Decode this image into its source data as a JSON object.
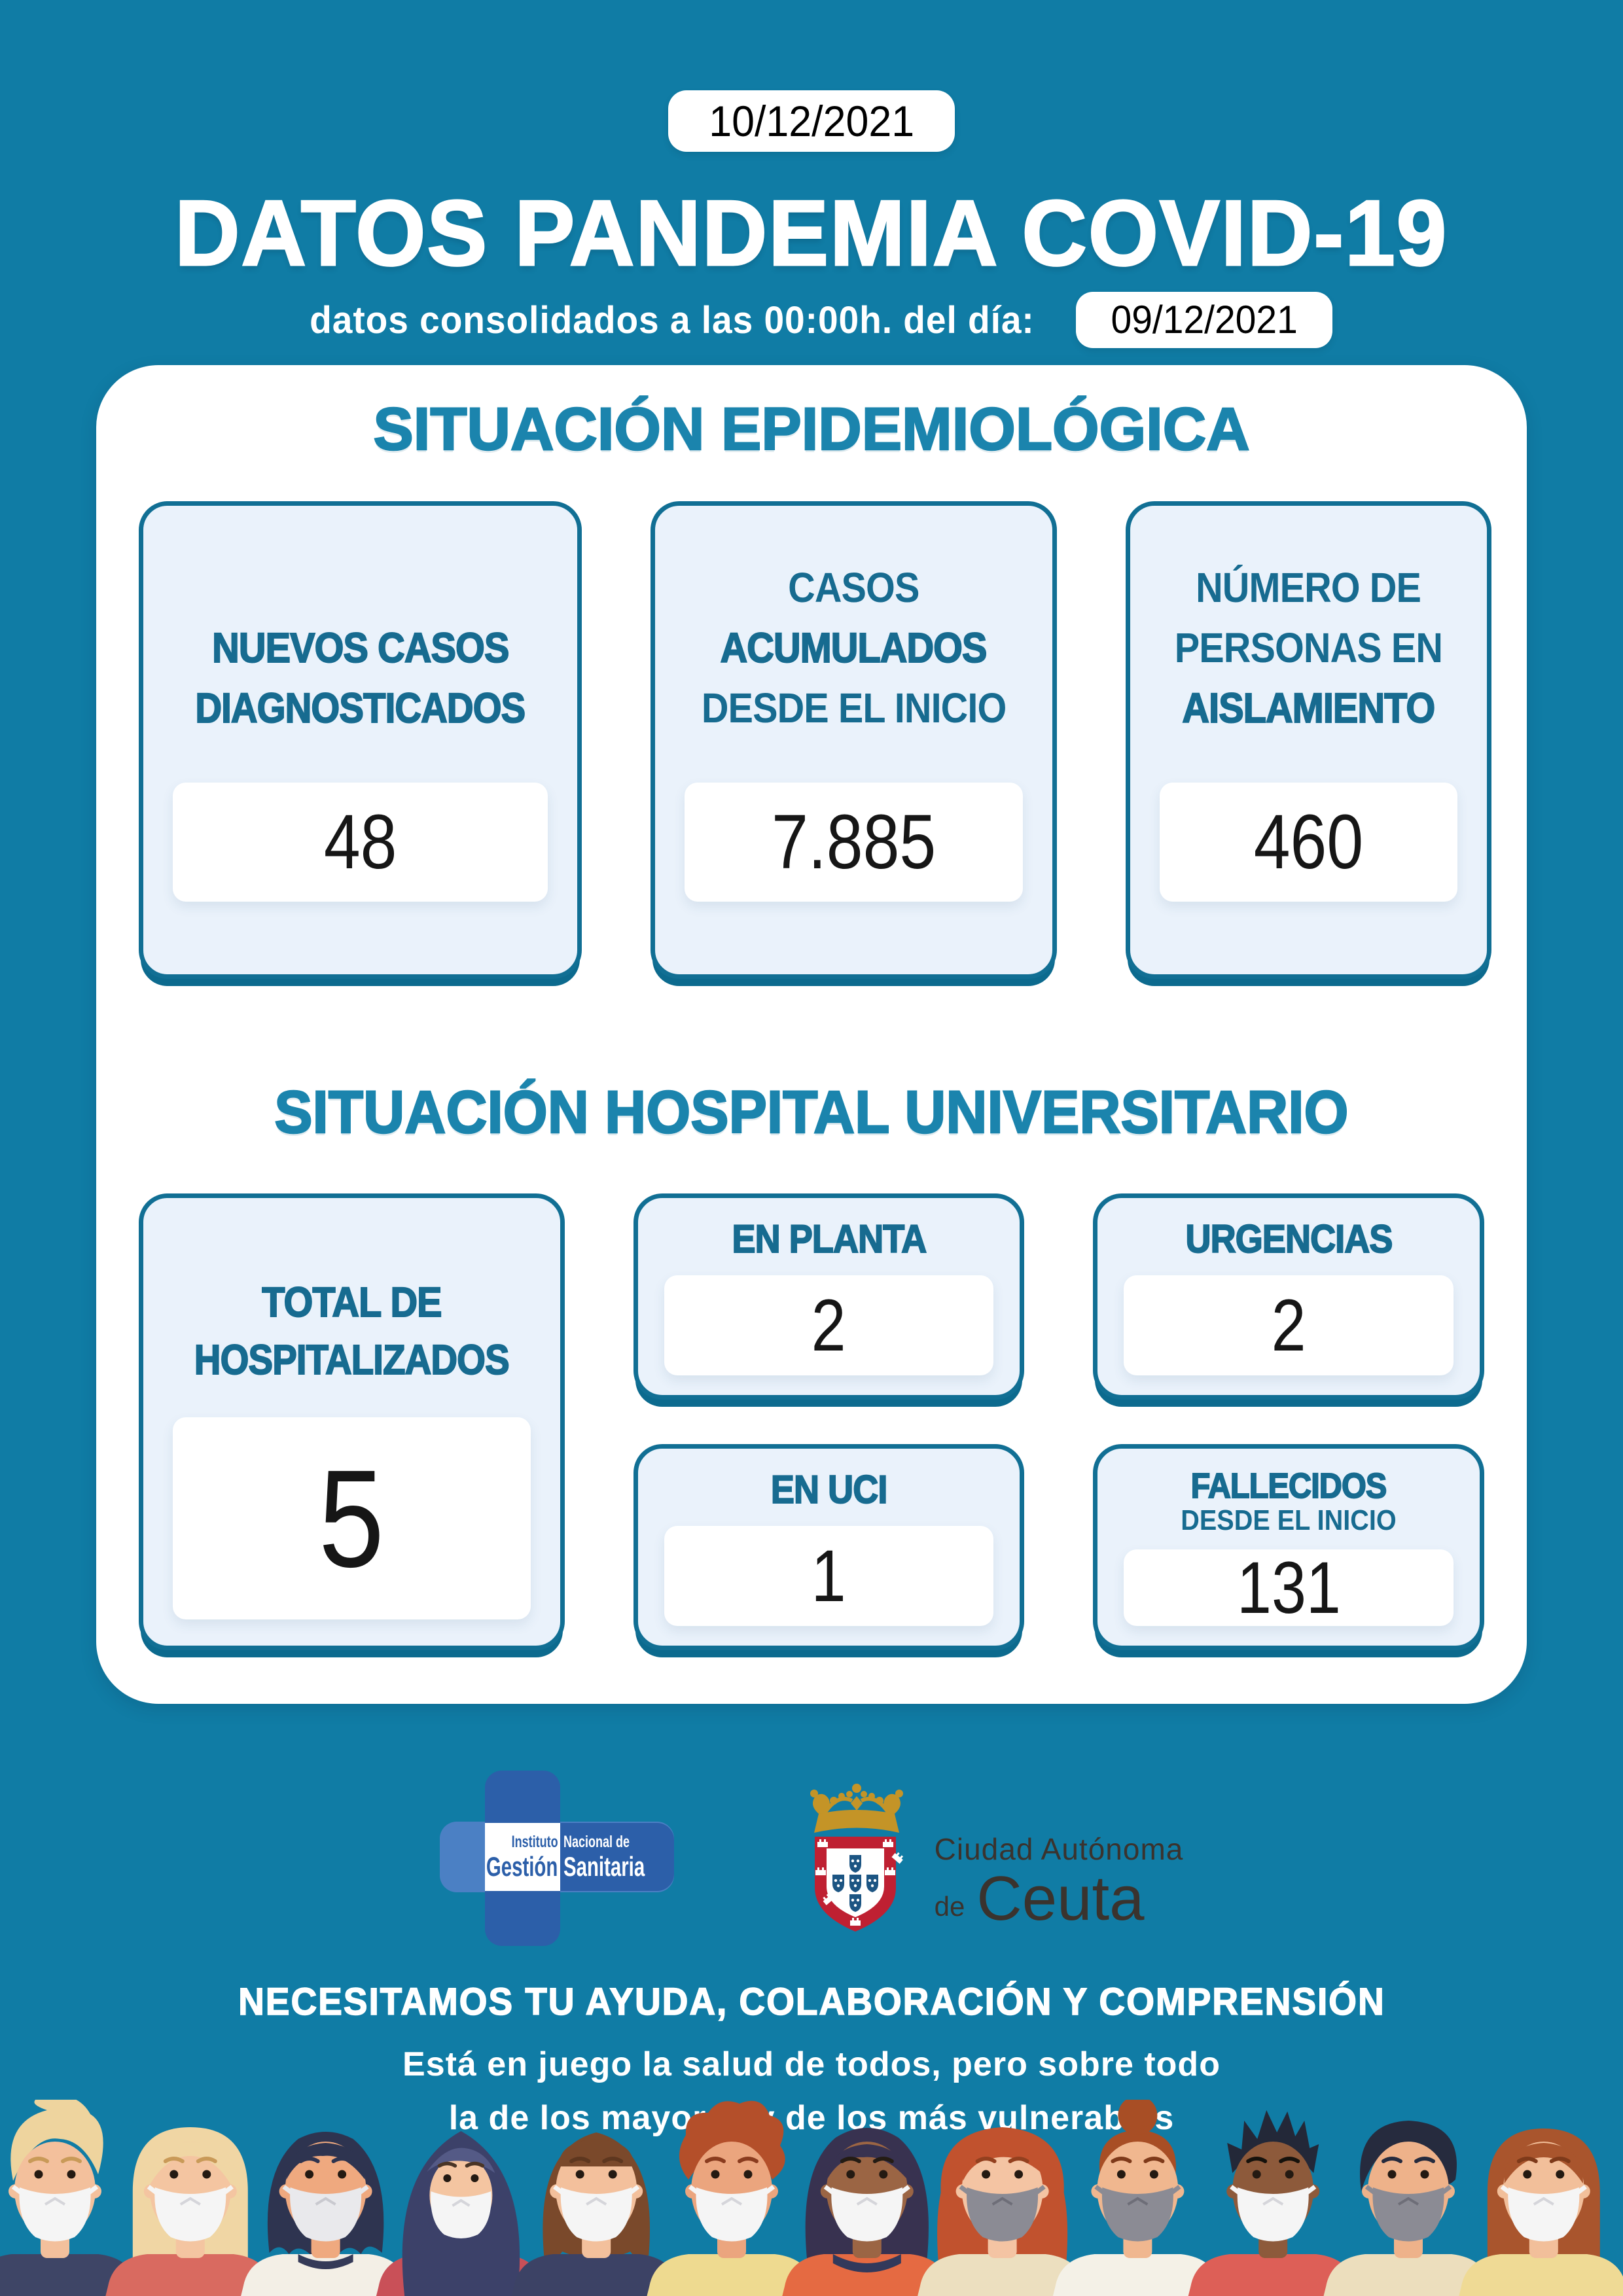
{
  "header": {
    "report_date": "10/12/2021",
    "title": "DATOS PANDEMIA COVID-19",
    "subtitle_label": "datos consolidados a las 00:00h. del día:",
    "data_date": "09/12/2021"
  },
  "epidemiology": {
    "section_title": "SITUACIÓN EPIDEMIOLÓGICA",
    "cards": {
      "nuevos": {
        "lines": [
          "NUEVOS CASOS",
          "DIAGNOSTICADOS"
        ],
        "value": "48"
      },
      "acumulados": {
        "lines": [
          "CASOS",
          "ACUMULADOS",
          "DESDE EL INICIO"
        ],
        "value": "7.885"
      },
      "aislamiento": {
        "lines": [
          "NÚMERO DE",
          "PERSONAS EN",
          "AISLAMIENTO"
        ],
        "value": "460"
      }
    }
  },
  "hospital": {
    "section_title": "SITUACIÓN HOSPITAL UNIVERSITARIO",
    "total": {
      "lines": [
        "TOTAL DE",
        "HOSPITALIZADOS"
      ],
      "value": "5"
    },
    "planta": {
      "label": "EN PLANTA",
      "value": "2"
    },
    "urgencias": {
      "label": "URGENCIAS",
      "value": "2"
    },
    "uci": {
      "label": "EN UCI",
      "value": "1"
    },
    "fallecidos": {
      "lines": [
        "FALLECIDOS",
        "DESDE EL INICIO"
      ],
      "value": "131"
    }
  },
  "logos": {
    "ingesa": {
      "instituto": "Instituto",
      "nacional_de": "Nacional de",
      "gestion": "Gestión",
      "sanitaria": "Sanitaria"
    },
    "ceuta": {
      "line1": "Ciudad Autónoma",
      "de": "de",
      "name": "Ceuta"
    }
  },
  "footer": {
    "line1": "NECESITAMOS TU AYUDA, COLABORACIÓN  Y COMPRENSIÓN",
    "line2": "Está en juego la salud de todos, pero sobre todo",
    "line3": "la de los mayores y de los más vulnerables"
  },
  "colors": {
    "background": "#107ca5",
    "card_border": "#116f94",
    "card_shadow": "#0c6a8e",
    "box_fill": "#eaf2fb",
    "heading_text": "#176b90",
    "section_title": "#1b84ad",
    "value_text": "#161616",
    "ingesa_dark_blue": "#2c5fa9",
    "ingesa_light_blue": "#4b80c4",
    "ceuta_red": "#bf2032",
    "ceuta_blue": "#1c5583",
    "ceuta_gold": "#c49427",
    "ceuta_text": "#3a332e"
  },
  "people_illustration": [
    {
      "type": "quiff",
      "skin": "#f3c09c",
      "hair": "#eed49e",
      "brow": "#c99a58",
      "shirt": "#3e4566",
      "mask": "#f5f5f5",
      "fold": "#d5d5da"
    },
    {
      "type": "long",
      "skin": "#f4c5a1",
      "hair": "#f0d6a4",
      "brow": "#c99a58",
      "shirt": "#d96a60",
      "mask": "#f5f5f5",
      "fold": "#d5d5da"
    },
    {
      "type": "wavybob",
      "skin": "#efa97f",
      "hair": "#2e3450",
      "brow": "#2e3450",
      "shirt": "#f3efe6",
      "shirt2": "#343a58",
      "collar": "neck",
      "mask": "#e9e9ec",
      "fold": "#c9c9cf"
    },
    {
      "type": "hijab",
      "skin": "#f4c5a1",
      "hair": "#3c4169",
      "hair2": "#545a86",
      "brow": "#4a3526",
      "shirt": "#c95058",
      "mask": "#f5f5f5",
      "fold": "#d5d5da"
    },
    {
      "type": "bobbangs",
      "skin": "#f3c09c",
      "hair": "#7a492b",
      "brow": "#5e371f",
      "shirt": "#3c4265",
      "mask": "#f5f5f5",
      "fold": "#d5d5da"
    },
    {
      "type": "curly",
      "skin": "#eba57e",
      "hair": "#b44f2a",
      "brow": "#8a3c1f",
      "shirt": "#eeda90",
      "mask": "#f5f5f5",
      "fold": "#d5d5da"
    },
    {
      "type": "afro",
      "skin": "#9b6544",
      "hair": "#383250",
      "brow": "#241c14",
      "shirt": "#e56a42",
      "shirt2": "#32395b",
      "collar": "band",
      "mask": "#f5f5f5",
      "fold": "#d5d5da"
    },
    {
      "type": "wavylong",
      "skin": "#f4c4a3",
      "hair": "#c1522e",
      "brow": "#93401f",
      "shirt": "#ecdfbf",
      "mask": "#8b8b94",
      "fold": "#6e6e78"
    },
    {
      "type": "bun",
      "skin": "#f0b78f",
      "hair": "#a84e25",
      "brow": "#7e3a1a",
      "shirt": "#f4f1e7",
      "mask": "#8b8b94",
      "fold": "#6e6e78"
    },
    {
      "type": "spiky",
      "skin": "#8d5a3b",
      "hair": "#232838",
      "brow": "#16120c",
      "shirt": "#dd5f57",
      "mask": "#f5f5f5",
      "fold": "#d5d5da"
    },
    {
      "type": "mop",
      "skin": "#eeb28a",
      "hair": "#262b3e",
      "brow": "#262b3e",
      "shirt": "#ecdebd",
      "mask": "#8b8b94",
      "fold": "#6e6e78"
    },
    {
      "type": "longstraight",
      "skin": "#f2bf9a",
      "hair": "#a9552d",
      "brow": "#7e3a1a",
      "shirt": "#efda95",
      "mask": "#f5f5f5",
      "fold": "#d5d5da"
    }
  ]
}
